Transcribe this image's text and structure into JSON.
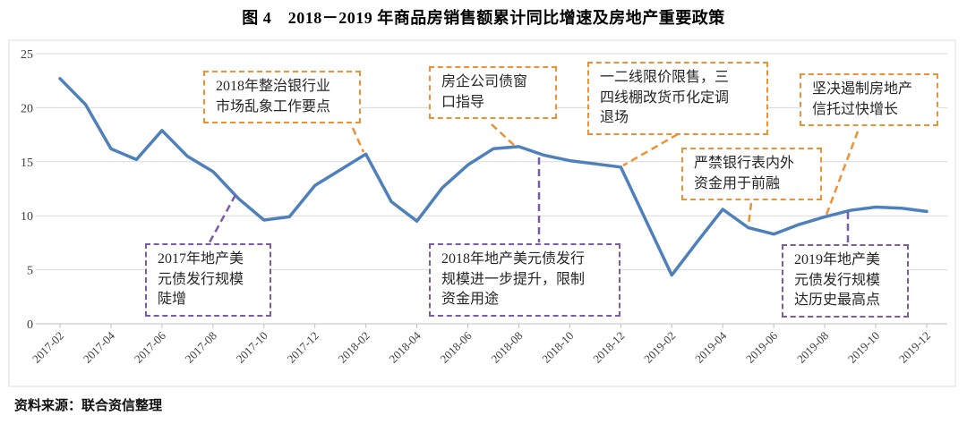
{
  "title": "图 4　2018－2019 年商品房销售额累计同比增速及房地产重要政策",
  "source_note": "资料来源：联合资信整理",
  "colors": {
    "line_blue": "#4E80BC",
    "annotation_orange": "#EE9133",
    "annotation_purple": "#7A5BA6",
    "gridline": "#D9D9D9",
    "axis": "#BFBFBF",
    "tick_label": "#404040"
  },
  "chart_data": {
    "type": "line",
    "title": "图 4　2018－2019 年商品房销售额累计同比增速及房地产重要政策",
    "x": [
      "2017-02",
      "2017-03",
      "2017-04",
      "2017-05",
      "2017-06",
      "2017-07",
      "2017-08",
      "2017-09",
      "2017-10",
      "2017-11",
      "2017-12",
      "2018-02",
      "2018-03",
      "2018-04",
      "2018-05",
      "2018-06",
      "2018-07",
      "2018-08",
      "2018-09",
      "2018-10",
      "2018-11",
      "2018-12",
      "2019-02",
      "2019-03",
      "2019-04",
      "2019-05",
      "2019-06",
      "2019-07",
      "2019-08",
      "2019-09",
      "2019-10",
      "2019-11",
      "2019-12"
    ],
    "values": [
      22.7,
      20.3,
      16.2,
      15.2,
      17.9,
      15.5,
      14.1,
      11.6,
      9.6,
      9.9,
      12.8,
      15.7,
      11.3,
      9.5,
      12.6,
      14.7,
      16.2,
      16.4,
      15.6,
      15.1,
      14.8,
      14.5,
      4.5,
      7.6,
      10.6,
      8.9,
      8.3,
      9.2,
      9.9,
      10.5,
      10.8,
      10.7,
      10.4
    ],
    "xtick_labels": [
      "2017-02",
      "2017-04",
      "2017-06",
      "2017-08",
      "2017-10",
      "2017-12",
      "2018-02",
      "2018-04",
      "2018-06",
      "2018-08",
      "2018-10",
      "2018-12",
      "2019-02",
      "2019-04",
      "2019-06",
      "2019-08",
      "2019-10",
      "2019-12"
    ],
    "yticks": [
      0,
      5,
      10,
      15,
      20,
      25
    ],
    "ylim": [
      0,
      25
    ],
    "grid": true,
    "legend": false,
    "annotations": [
      {
        "id": "a1",
        "color": "orange",
        "target": "2018-02",
        "text": "2018年整治银行业\n市场乱象工作要点"
      },
      {
        "id": "a2",
        "color": "orange",
        "target": "2018-07",
        "text": "房企公司债窗\n口指导"
      },
      {
        "id": "a3",
        "color": "orange",
        "target": "2018-12",
        "text": "一二线限价限售，三\n四线棚改货币化定调\n退场"
      },
      {
        "id": "a4",
        "color": "orange",
        "target": "2019-05",
        "text": "严禁银行表内外\n资金用于前融"
      },
      {
        "id": "a5",
        "color": "orange",
        "target": "2019-08",
        "text": "坚决遏制房地产\n信托过快增长"
      },
      {
        "id": "p1",
        "color": "purple",
        "target": "2017-09",
        "text": "2017年地产美\n元债发行规模\n陡增"
      },
      {
        "id": "p2",
        "color": "purple",
        "target": "2018-09",
        "text": "2018年地产美元债发行\n规模进一步提升，限制\n资金用途"
      },
      {
        "id": "p3",
        "color": "purple",
        "target": "2019-09",
        "text": "2019年地产美\n元债发行规模\n达历史最高点"
      }
    ]
  }
}
